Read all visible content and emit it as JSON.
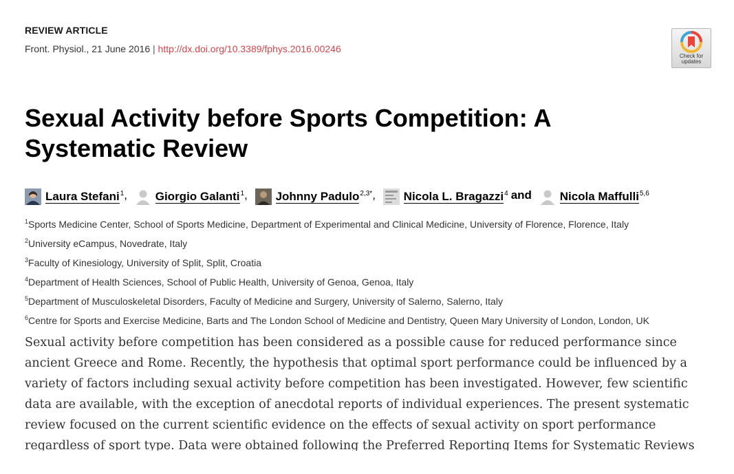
{
  "header": {
    "article_type": "REVIEW ARTICLE",
    "journal_date": "Front. Physiol., 21 June 2016",
    "separator": "|",
    "doi": "http://dx.doi.org/10.3389/fphys.2016.00246"
  },
  "check_updates": {
    "line1": "Check for",
    "line2": "updates"
  },
  "title": "Sexual Activity before Sports Competition: A Systematic Review",
  "authors": [
    {
      "name": "Laura Stefani",
      "sup": "1",
      "after": ","
    },
    {
      "name": "Giorgio Galanti",
      "sup": "1",
      "after": ","
    },
    {
      "name": "Johnny Padulo",
      "sup": "2,3*",
      "after": ","
    },
    {
      "name": "Nicola L. Bragazzi",
      "sup": "4",
      "after": ""
    },
    {
      "name": "Nicola Maffulli",
      "sup": "5,6",
      "after": ""
    }
  ],
  "authors_joiner": "and",
  "affiliations": [
    {
      "num": "1",
      "text": "Sports Medicine Center, School of Sports Medicine, Department of Experimental and Clinical Medicine, University of Florence, Florence, Italy"
    },
    {
      "num": "2",
      "text": "University eCampus, Novedrate, Italy"
    },
    {
      "num": "3",
      "text": "Faculty of Kinesiology, University of Split, Split, Croatia"
    },
    {
      "num": "4",
      "text": "Department of Health Sciences, School of Public Health, University of Genoa, Genoa, Italy"
    },
    {
      "num": "5",
      "text": "Department of Musculoskeletal Disorders, Faculty of Medicine and Surgery, University of Salerno, Salerno, Italy"
    },
    {
      "num": "6",
      "text": "Centre for Sports and Exercise Medicine, Barts and The London School of Medicine and Dentistry, Queen Mary University of London, London, UK"
    }
  ],
  "abstract": "Sexual activity before competition has been considered as a possible cause for reduced performance since ancient Greece and Rome. Recently, the hypothesis that optimal sport performance could be influenced by a variety of factors including sexual activity before competition has been investigated. However, few scientific data are available, with the exception of anecdotal reports of individual experiences. The present systematic review focused on the current scientific evidence on the effects of sexual activity on sport performance regardless of sport type. Data were obtained following the Preferred Reporting Items for Systematic Reviews and Meta-",
  "colors": {
    "doi_link": "#d0464a",
    "text": "#333333",
    "title": "#000000"
  },
  "icons": {
    "check_updates": "check-for-updates-badge-icon",
    "author_photo": "author-avatar-icon"
  }
}
